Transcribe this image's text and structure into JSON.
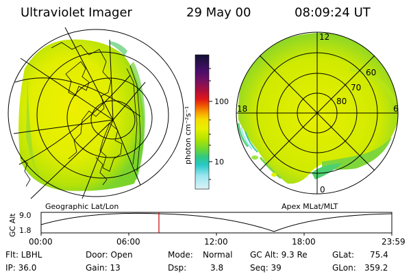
{
  "header": {
    "instrument": "Ultraviolet Imager",
    "date": "29 May 00",
    "time": "08:09:24 UT"
  },
  "left_panel": {
    "caption": "Geographic Lat/Lon"
  },
  "right_panel": {
    "caption": "Apex MLat/MLT",
    "lat_labels": [
      "60",
      "70",
      "80"
    ],
    "mlt_labels": [
      "12",
      "18",
      "6",
      "0"
    ]
  },
  "colorbar": {
    "unit_label": "photon cm⁻²s⁻¹",
    "tick_labels": [
      "100",
      "10"
    ],
    "colors": [
      "#111133",
      "#4a0e6a",
      "#7a1060",
      "#b01038",
      "#e01818",
      "#f05800",
      "#f8a000",
      "#f6dc00",
      "#e8f000",
      "#b0e400",
      "#70d830",
      "#30c880",
      "#28c8c8",
      "#9ae6f0",
      "#dcf3f6"
    ]
  },
  "timeline": {
    "axis_title": "GC Alt",
    "y_labels": [
      "9.0",
      "1.8"
    ],
    "x_labels": [
      "00:00",
      "06:00",
      "12:00",
      "18:00",
      "23:59"
    ],
    "marker_color": "#cc0000"
  },
  "info": {
    "col1": [
      "Flt: LBHL",
      "IP: 36.0"
    ],
    "col2": [
      "Door: Open",
      "Gain: 13"
    ],
    "col3a": [
      "Mode:",
      "Dsp:"
    ],
    "col3b": [
      "Normal",
      "3.8"
    ],
    "col4": [
      "GC Alt: 9.3 Re",
      "Seq: 39"
    ],
    "col5": [
      "GLat:",
      "GLon:"
    ],
    "col6": [
      "75.4",
      "359.2"
    ]
  }
}
